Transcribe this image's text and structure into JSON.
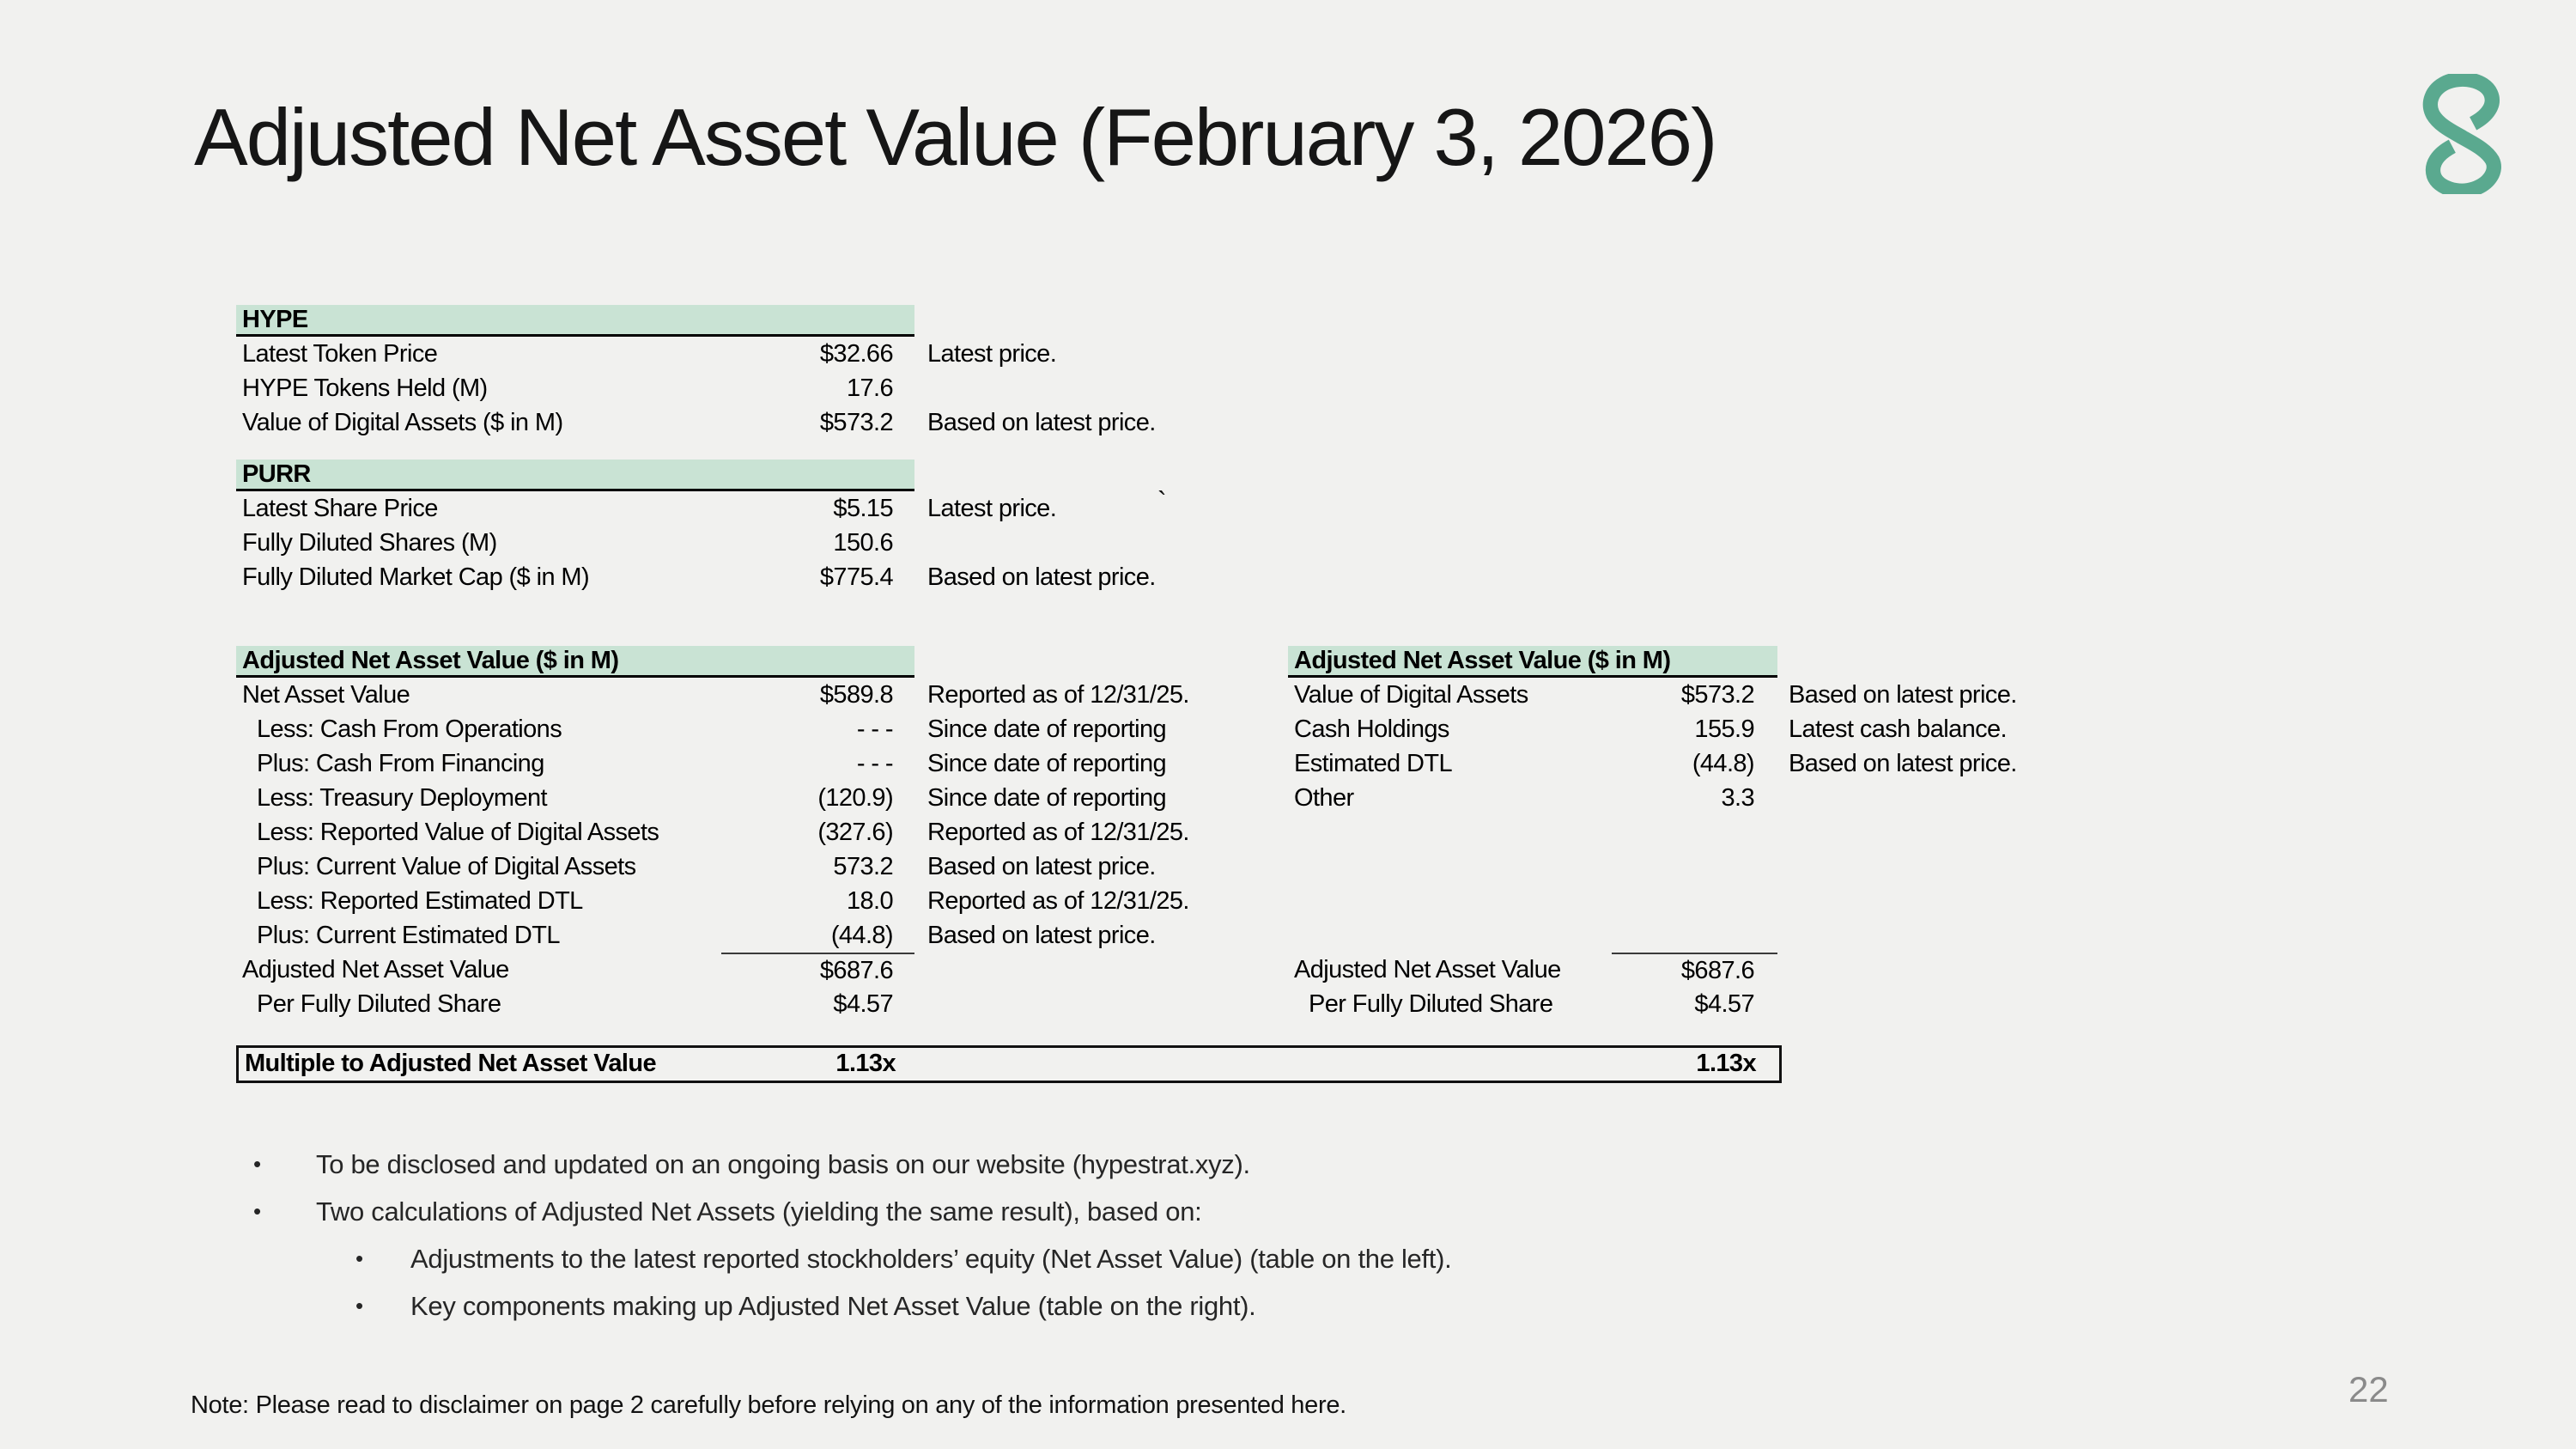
{
  "slide": {
    "title": "Adjusted Net Asset Value (February 3, 2026)",
    "page_number": "22",
    "footnote": "Note: Please read to disclaimer on page 2 carefully before relying on any of the information presented here.",
    "stray_mark": "`"
  },
  "colors": {
    "background": "#f1f1ef",
    "header_fill": "#c9e3d4",
    "logo": "#5aa98f",
    "page_number": "#8a8a8a"
  },
  "logo_icon": "s-logo",
  "tables": {
    "hype": {
      "header": "HYPE",
      "rows": [
        {
          "label": "Latest Token Price",
          "value": "$32.66",
          "note": "Latest price.",
          "indent": false
        },
        {
          "label": "HYPE Tokens Held (M)",
          "value": "17.6",
          "note": "",
          "indent": false
        },
        {
          "label": "Value of Digital Assets ($ in M)",
          "value": "$573.2",
          "note": "Based on latest price.",
          "indent": false
        }
      ]
    },
    "purr": {
      "header": "PURR",
      "rows": [
        {
          "label": "Latest Share Price",
          "value": "$5.15",
          "note": "Latest price.",
          "indent": false
        },
        {
          "label": "Fully Diluted Shares (M)",
          "value": "150.6",
          "note": "",
          "indent": false
        },
        {
          "label": "Fully Diluted Market Cap ($ in M)",
          "value": "$775.4",
          "note": "Based on latest price.",
          "indent": false
        }
      ]
    },
    "anav_left": {
      "header": "Adjusted Net Asset Value ($ in M)",
      "rows": [
        {
          "label": "Net Asset Value",
          "value": "$589.8",
          "note": "Reported as of 12/31/25.",
          "indent": false
        },
        {
          "label": "Less: Cash From Operations",
          "value": "- - -",
          "note": "Since date of reporting",
          "indent": true
        },
        {
          "label": "Plus: Cash From Financing",
          "value": "- - -",
          "note": "Since date of reporting",
          "indent": true
        },
        {
          "label": "Less: Treasury Deployment",
          "value": "(120.9)",
          "note": "Since date of reporting",
          "indent": true
        },
        {
          "label": "Less: Reported Value of Digital Assets",
          "value": "(327.6)",
          "note": "Reported as of 12/31/25.",
          "indent": true
        },
        {
          "label": "Plus: Current Value of Digital Assets",
          "value": "573.2",
          "note": "Based on latest price.",
          "indent": true
        },
        {
          "label": "Less: Reported Estimated DTL",
          "value": "18.0",
          "note": "Reported as of 12/31/25.",
          "indent": true
        },
        {
          "label": "Plus: Current Estimated DTL",
          "value": "(44.8)",
          "note": "Based on latest price.",
          "indent": true
        }
      ],
      "totals": [
        {
          "label": "Adjusted Net Asset Value",
          "value": "$687.6",
          "note": "",
          "indent": false,
          "rule": true
        },
        {
          "label": "Per Fully Diluted Share",
          "value": "$4.57",
          "note": "",
          "indent": true
        }
      ]
    },
    "anav_right": {
      "header": "Adjusted Net Asset Value ($ in M)",
      "rows": [
        {
          "label": "Value of Digital Assets",
          "value": "$573.2",
          "note": "Based on latest price.",
          "indent": false
        },
        {
          "label": "Cash Holdings",
          "value": "155.9",
          "note": "Latest cash balance.",
          "indent": false
        },
        {
          "label": "Estimated DTL",
          "value": "(44.8)",
          "note": "Based on latest price.",
          "indent": false
        },
        {
          "label": "Other",
          "value": "3.3",
          "note": "",
          "indent": false
        }
      ],
      "totals": [
        {
          "label": "Adjusted Net Asset Value",
          "value": "$687.6",
          "note": "",
          "indent": false,
          "rule": true
        },
        {
          "label": "Per Fully Diluted Share",
          "value": "$4.57",
          "note": "",
          "indent": true
        }
      ]
    }
  },
  "multiple": {
    "label": "Multiple to Adjusted Net Asset Value",
    "value_left": "1.13x",
    "value_right": "1.13x"
  },
  "bullets": [
    {
      "level": 1,
      "text": "To be disclosed and updated on an ongoing basis on our website (hypestrat.xyz)."
    },
    {
      "level": 1,
      "text": "Two calculations of Adjusted Net Assets (yielding the same result), based on:"
    },
    {
      "level": 2,
      "text": "Adjustments to the latest reported stockholders’ equity (Net Asset Value) (table on the left)."
    },
    {
      "level": 2,
      "text": "Key components making up Adjusted Net Asset Value (table on the right)."
    }
  ]
}
